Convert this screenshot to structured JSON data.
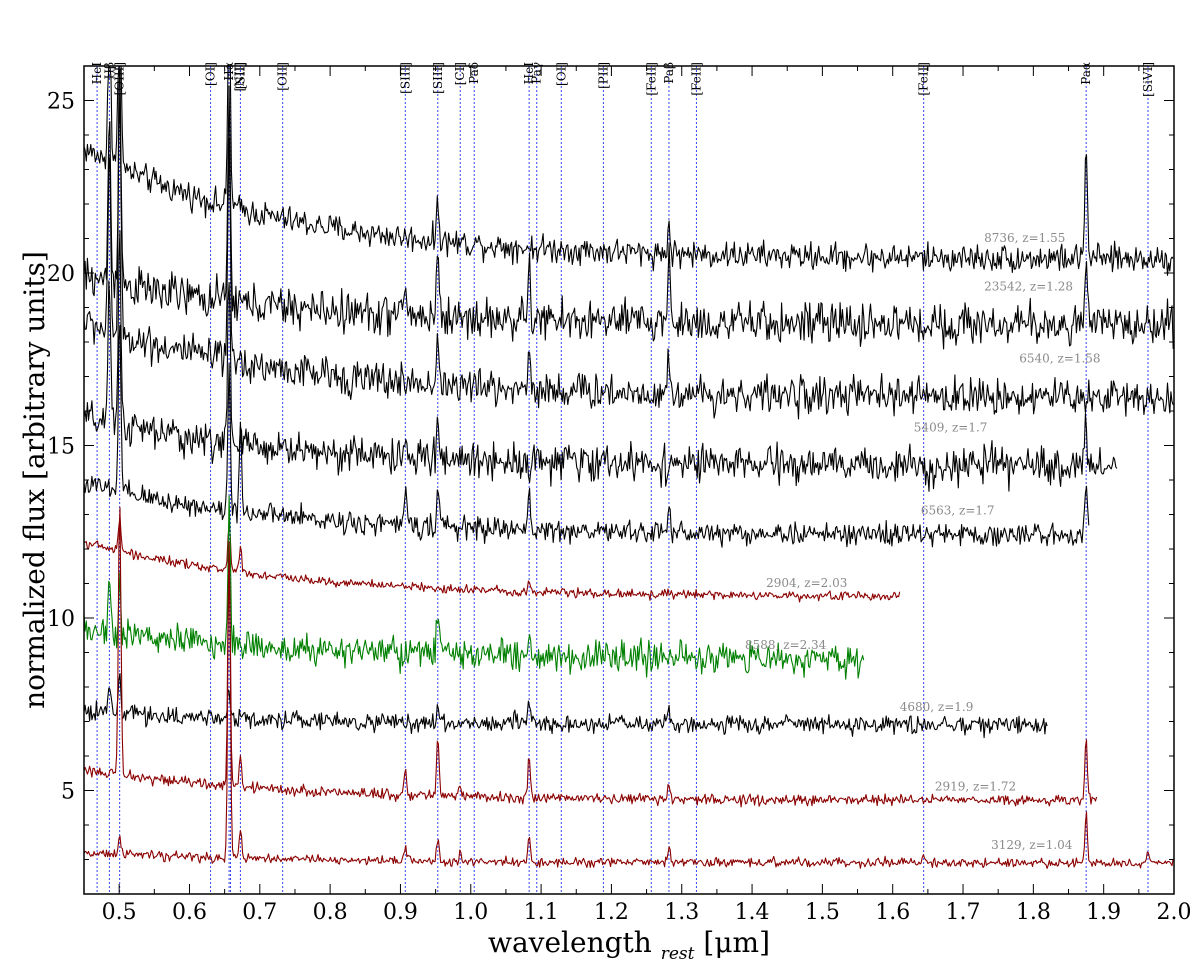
{
  "chart_data": {
    "type": "line",
    "xlabel": "wavelength",
    "xlabel_sub": "rest",
    "xlabel_unit": "[μm]",
    "ylabel": "normalized flux [arbitrary units]",
    "xlim": [
      0.45,
      2.0
    ],
    "ylim": [
      2.0,
      26.0
    ],
    "xticks": [
      0.5,
      0.6,
      0.7,
      0.8,
      0.9,
      1.0,
      1.1,
      1.2,
      1.3,
      1.4,
      1.5,
      1.6,
      1.7,
      1.8,
      1.9,
      2.0
    ],
    "xtick_labels": [
      "0.5",
      "0.6",
      "0.7",
      "0.8",
      "0.9",
      "1.0",
      "1.1",
      "1.2",
      "1.3",
      "1.4",
      "1.5",
      "1.6",
      "1.7",
      "1.8",
      "1.9",
      "2.0"
    ],
    "yticks": [
      5,
      10,
      15,
      20,
      25
    ],
    "ytick_labels": [
      "5",
      "10",
      "15",
      "20",
      "25"
    ],
    "grid": false,
    "colors": {
      "black": "#000000",
      "darkred": "#8b0000",
      "green": "#008000",
      "line_marker": "#3344ee"
    },
    "emission_lines": [
      {
        "label": "HeI",
        "x": 0.4686
      },
      {
        "label": "Hβ",
        "x": 0.4861
      },
      {
        "label": "[OIII]",
        "x": 0.5007
      },
      {
        "label": "[OI]",
        "x": 0.63
      },
      {
        "label": "Hα",
        "x": 0.6563
      },
      {
        "label": "[NII]",
        "x": 0.6583
      },
      {
        "label": "[SII]",
        "x": 0.6724
      },
      {
        "label": "[OII]",
        "x": 0.7325
      },
      {
        "label": "[SIII]",
        "x": 0.9069
      },
      {
        "label": "[SIII]",
        "x": 0.9531
      },
      {
        "label": "[CI]",
        "x": 0.985
      },
      {
        "label": "Paδ",
        "x": 1.0049
      },
      {
        "label": "HeI",
        "x": 1.083
      },
      {
        "label": "Paγ",
        "x": 1.0938
      },
      {
        "label": "[OI]",
        "x": 1.1287
      },
      {
        "label": "[PII]",
        "x": 1.1886
      },
      {
        "label": "[FeII]",
        "x": 1.2567
      },
      {
        "label": "Paβ",
        "x": 1.2818
      },
      {
        "label": "[FeII]",
        "x": 1.3209
      },
      {
        "label": "[FeII]",
        "x": 1.644
      },
      {
        "label": "Paα",
        "x": 1.8751
      },
      {
        "label": "[SiVI]",
        "x": 1.963
      }
    ],
    "series": [
      {
        "name": "8736, z=1.55",
        "color": "#000000",
        "xmin": 0.45,
        "xmax": 2.0,
        "level": 20.4,
        "excess": 3.2,
        "noise": 0.3,
        "lines": [
          {
            "x": 0.4861,
            "a": 6
          },
          {
            "x": 0.5007,
            "a": 8
          },
          {
            "x": 0.6563,
            "a": 7
          },
          {
            "x": 0.9531,
            "a": 1.2
          },
          {
            "x": 1.2818,
            "a": 0.8
          },
          {
            "x": 1.8751,
            "a": 3.3
          }
        ],
        "label_x": 1.73,
        "label_y": 20.9
      },
      {
        "name": "23542, z=1.28",
        "color": "#000000",
        "xmin": 0.45,
        "xmax": 2.0,
        "level": 18.5,
        "excess": 1.4,
        "noise": 0.45,
        "lines": [
          {
            "x": 0.4861,
            "a": 5
          },
          {
            "x": 0.5007,
            "a": 7
          },
          {
            "x": 0.6563,
            "a": 6
          },
          {
            "x": 0.9069,
            "a": 1.0
          },
          {
            "x": 0.9531,
            "a": 2.0
          },
          {
            "x": 1.083,
            "a": 1.5
          },
          {
            "x": 1.2818,
            "a": 2.0
          },
          {
            "x": 1.8751,
            "a": 1.5
          }
        ],
        "label_x": 1.73,
        "label_y": 19.5
      },
      {
        "name": "6540, z=1.58",
        "color": "#000000",
        "xmin": 0.45,
        "xmax": 2.0,
        "level": 16.4,
        "excess": 2.2,
        "noise": 0.4,
        "lines": [
          {
            "x": 0.4861,
            "a": 5
          },
          {
            "x": 0.5007,
            "a": 7
          },
          {
            "x": 0.6563,
            "a": 6
          },
          {
            "x": 0.9531,
            "a": 1.5
          },
          {
            "x": 1.083,
            "a": 1.2
          },
          {
            "x": 1.2818,
            "a": 1.0
          }
        ],
        "label_x": 1.78,
        "label_y": 17.4
      },
      {
        "name": "5409, z=1.7",
        "color": "#000000",
        "xmin": 0.45,
        "xmax": 1.92,
        "level": 14.4,
        "excess": 1.4,
        "noise": 0.4,
        "lines": [
          {
            "x": 0.4861,
            "a": 4
          },
          {
            "x": 0.5007,
            "a": 6
          },
          {
            "x": 0.6563,
            "a": 5
          },
          {
            "x": 0.9531,
            "a": 1.0
          },
          {
            "x": 1.8751,
            "a": 1.2
          }
        ],
        "label_x": 1.63,
        "label_y": 15.4
      },
      {
        "name": "6563, z=1.7",
        "color": "#000000",
        "xmin": 0.45,
        "xmax": 1.88,
        "level": 12.4,
        "excess": 1.5,
        "noise": 0.25,
        "lines": [
          {
            "x": 0.5007,
            "a": 5
          },
          {
            "x": 0.6563,
            "a": 4
          },
          {
            "x": 0.6724,
            "a": 2.5
          },
          {
            "x": 0.9069,
            "a": 1.0
          },
          {
            "x": 0.9531,
            "a": 1.2
          },
          {
            "x": 1.083,
            "a": 1.0
          },
          {
            "x": 1.2818,
            "a": 0.8
          },
          {
            "x": 1.8751,
            "a": 1.5
          }
        ],
        "label_x": 1.64,
        "label_y": 13.0
      },
      {
        "name": "2904, z=2.03",
        "color": "#8b0000",
        "xmin": 0.45,
        "xmax": 1.61,
        "level": 10.6,
        "excess": 1.6,
        "noise": 0.1,
        "lines": [
          {
            "x": 0.5007,
            "a": 1.0
          },
          {
            "x": 0.6563,
            "a": 1.5
          },
          {
            "x": 0.6724,
            "a": 0.8
          },
          {
            "x": 1.083,
            "a": 0.3
          }
        ],
        "label_x": 1.42,
        "label_y": 10.9
      },
      {
        "name": "8588, z=2.34",
        "color": "#008000",
        "xmin": 0.45,
        "xmax": 1.56,
        "level": 8.8,
        "excess": 0.9,
        "noise": 0.35,
        "lines": [
          {
            "x": 0.4861,
            "a": 1.5
          },
          {
            "x": 0.5007,
            "a": 1.5
          },
          {
            "x": 0.6563,
            "a": 4.0
          },
          {
            "x": 0.9531,
            "a": 1.2
          },
          {
            "x": 1.083,
            "a": 0.8
          }
        ],
        "label_x": 1.39,
        "label_y": 9.1
      },
      {
        "name": "4680, z=1.9",
        "color": "#000000",
        "xmin": 0.45,
        "xmax": 1.82,
        "level": 6.9,
        "excess": 0.4,
        "noise": 0.2,
        "lines": [
          {
            "x": 0.4861,
            "a": 0.8
          },
          {
            "x": 0.5007,
            "a": 1.2
          },
          {
            "x": 0.6563,
            "a": 1.0
          },
          {
            "x": 0.9531,
            "a": 0.6
          },
          {
            "x": 1.083,
            "a": 0.6
          },
          {
            "x": 1.2818,
            "a": 0.5
          }
        ],
        "label_x": 1.61,
        "label_y": 7.3
      },
      {
        "name": "2919, z=1.72",
        "color": "#8b0000",
        "xmin": 0.45,
        "xmax": 1.89,
        "level": 4.7,
        "excess": 0.9,
        "noise": 0.12,
        "lines": [
          {
            "x": 0.5007,
            "a": 8
          },
          {
            "x": 0.6563,
            "a": 7
          },
          {
            "x": 0.6724,
            "a": 0.8
          },
          {
            "x": 0.9069,
            "a": 0.8
          },
          {
            "x": 0.9531,
            "a": 1.5
          },
          {
            "x": 0.985,
            "a": 0.3
          },
          {
            "x": 1.083,
            "a": 1.2
          },
          {
            "x": 1.2818,
            "a": 0.5
          },
          {
            "x": 1.8751,
            "a": 1.8
          }
        ],
        "label_x": 1.66,
        "label_y": 5.0
      },
      {
        "name": "3129, z=1.04",
        "color": "#8b0000",
        "xmin": 0.45,
        "xmax": 2.0,
        "level": 2.9,
        "excess": 0.3,
        "noise": 0.1,
        "lines": [
          {
            "x": 0.5007,
            "a": 0.6
          },
          {
            "x": 0.6563,
            "a": 9
          },
          {
            "x": 0.6724,
            "a": 0.8
          },
          {
            "x": 0.9069,
            "a": 0.4
          },
          {
            "x": 0.9531,
            "a": 0.6
          },
          {
            "x": 0.985,
            "a": 0.3
          },
          {
            "x": 1.083,
            "a": 0.8
          },
          {
            "x": 1.2818,
            "a": 0.4
          },
          {
            "x": 1.644,
            "a": 0.3
          },
          {
            "x": 1.8751,
            "a": 1.5
          },
          {
            "x": 1.963,
            "a": 0.3
          }
        ],
        "label_x": 1.74,
        "label_y": 3.3
      }
    ]
  }
}
